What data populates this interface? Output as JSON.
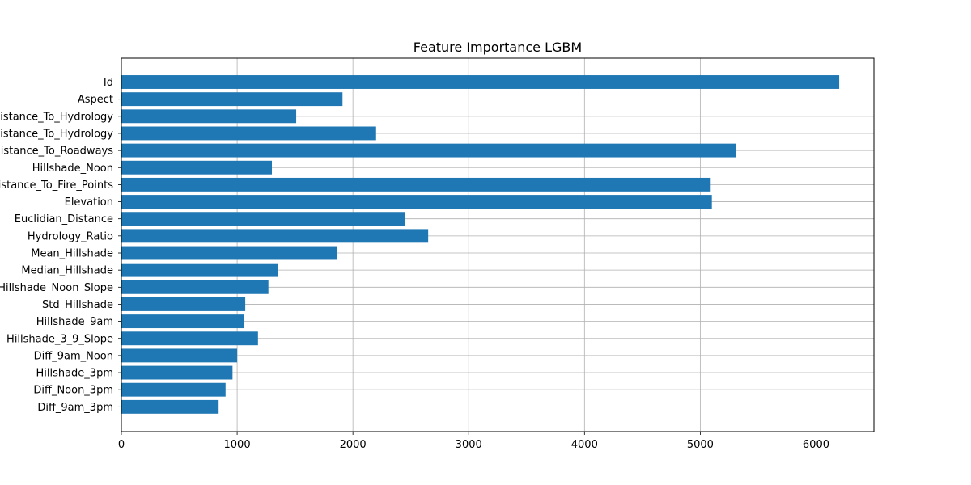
{
  "chart_data": {
    "type": "bar",
    "orientation": "horizontal",
    "title": "Feature Importance LGBM",
    "xlabel": "",
    "ylabel": "",
    "categories": [
      "Id",
      "Aspect",
      "Horizontal_Distance_To_Hydrology",
      "Vertical_Distance_To_Hydrology",
      "Horizontal_Distance_To_Roadways",
      "Hillshade_Noon",
      "Horizontal_Distance_To_Fire_Points",
      "Elevation",
      "Euclidian_Distance",
      "Hydrology_Ratio",
      "Mean_Hillshade",
      "Median_Hillshade",
      "Hillshade_Noon_Slope",
      "Std_Hillshade",
      "Hillshade_9am",
      "Hillshade_3_9_Slope",
      "Diff_9am_Noon",
      "Hillshade_3pm",
      "Diff_Noon_3pm",
      "Diff_9am_3pm"
    ],
    "values": [
      6200,
      1910,
      1510,
      2200,
      5310,
      1300,
      5090,
      5100,
      2450,
      2650,
      1860,
      1350,
      1270,
      1070,
      1060,
      1180,
      1000,
      960,
      900,
      840
    ],
    "xlim": [
      0,
      6500
    ],
    "xticks": [
      0,
      1000,
      2000,
      3000,
      4000,
      5000,
      6000
    ],
    "grid": true,
    "bar_color": "#1f77b4"
  }
}
